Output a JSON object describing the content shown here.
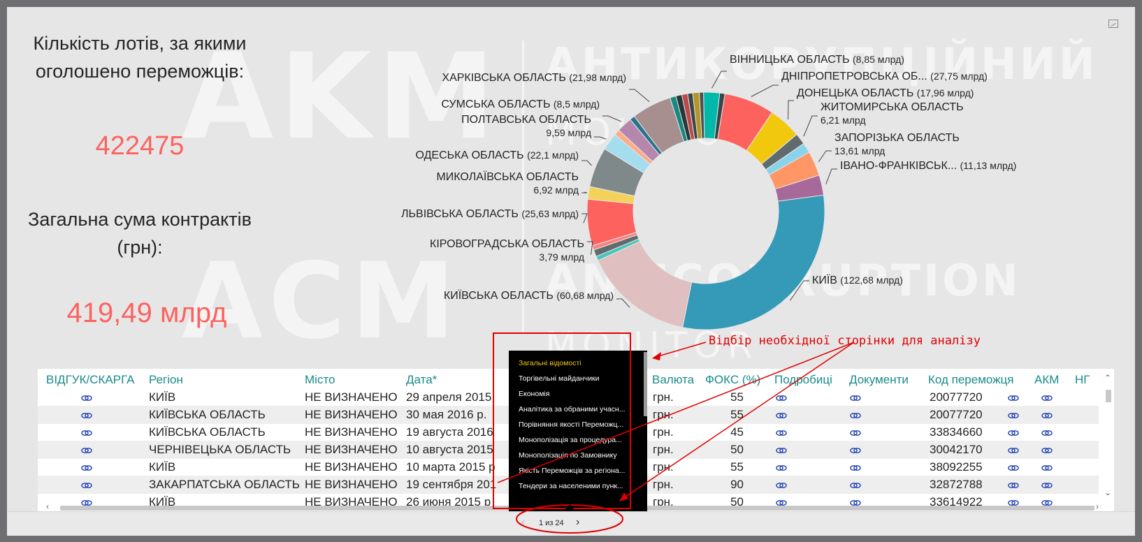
{
  "watermark": {
    "logo_top": "AKM",
    "logo_bottom": "ACM",
    "text1": "АНТИКОРУПЦІЙНИЙ",
    "text2": "МОНІТОР",
    "text3": "ANTICORRUPTION",
    "text4": "MONITOR"
  },
  "kpi": {
    "lots_title_1": "Кількість лотів, за якими",
    "lots_title_2": "оголошено переможців:",
    "lots_value": "422475",
    "sum_title_1": "Загальна сума контрактів",
    "sum_title_2": "(грн):",
    "sum_value": "419,49 млрд"
  },
  "chart_data": {
    "type": "pie",
    "hole": true,
    "unit": "млрд",
    "slices": [
      {
        "label": "ВІННИЦЬКА ОБЛАСТЬ",
        "value": 8.85,
        "text": "ВІННИЦЬКА ОБЛАСТЬ",
        "value_text": "(8,85 млрд)",
        "color": "#01b8aa"
      },
      {
        "label": "(unlabeled)",
        "value": 2.9,
        "color": "#374649"
      },
      {
        "label": "ДНІПРОПЕТРОВСЬКА ОБ...",
        "value": 27.75,
        "text": "ДНІПРОПЕТРОВСЬКА ОБ...",
        "value_text": "(27,75 млрд)",
        "color": "#fd625e"
      },
      {
        "label": "ДОНЕЦЬКА ОБЛАСТЬ",
        "value": 17.96,
        "text": "ДОНЕЦЬКА ОБЛАСТЬ",
        "value_text": "(17,96 млрд)",
        "color": "#f2c80f"
      },
      {
        "label": "ЖИТОМИРСЬКА ОБЛАСТЬ",
        "value": 6.21,
        "text": "ЖИТОМИРСЬКА ОБЛАСТЬ",
        "value_text": "6,21 млрд",
        "color": "#5f6b6d"
      },
      {
        "label": "(unlabeled)",
        "value": 5.6,
        "color": "#8ad4eb"
      },
      {
        "label": "ЗАПОРІЗЬКА ОБЛАСТЬ",
        "value": 13.61,
        "text": "ЗАПОРІЗЬКА ОБЛАСТЬ",
        "value_text": "13,61 млрд",
        "color": "#fe9666"
      },
      {
        "label": "ІВАНО-ФРАНКІВСЬК...",
        "value": 11.13,
        "text": "ІВАНО-ФРАНКІВСЬК...",
        "value_text": "(11,13 млрд)",
        "color": "#a66999"
      },
      {
        "label": "КИЇВ",
        "value": 122.68,
        "text": "КИЇВ",
        "value_text": "(122,68 млрд)",
        "color": "#3599b8"
      },
      {
        "label": "КИЇВСЬКА ОБЛАСТЬ",
        "value": 60.68,
        "text": "КИЇВСЬКА ОБЛАСТЬ",
        "value_text": "(60,68 млрд)",
        "color": "#dfbfbf"
      },
      {
        "label": "(unlabeled)",
        "value": 2.5,
        "color": "#4ac5bb"
      },
      {
        "label": "КІРОВОГРАДСЬКА ОБЛАСТЬ",
        "value": 3.79,
        "text": "КІРОВОГРАДСЬКА ОБЛАСТЬ",
        "value_text": "3,79 млрд",
        "color": "#5f6b6d"
      },
      {
        "label": "(unlabeled)",
        "value": 2.4,
        "color": "#fb8281"
      },
      {
        "label": "ЛЬВІВСЬКА ОБЛАСТЬ",
        "value": 25.63,
        "text": "ЛЬВІВСЬКА ОБЛАСТЬ",
        "value_text": "(25,63 млрд)",
        "color": "#fd625e"
      },
      {
        "label": "МИКОЛАЇВСЬКА ОБЛАСТЬ",
        "value": 6.92,
        "text": "МИКОЛАЇВСЬКА ОБЛАСТЬ",
        "value_text": "6,92 млрд",
        "color": "#f4d25a"
      },
      {
        "label": "ОДЕСЬКА ОБЛАСТЬ",
        "value": 22.1,
        "text": "ОДЕСЬКА ОБЛАСТЬ",
        "value_text": "(22,1 млрд)",
        "color": "#7f898a"
      },
      {
        "label": "ПОЛТАВСЬКА ОБЛАСТЬ",
        "value": 9.59,
        "text": "ПОЛТАВСЬКА ОБЛАСТЬ",
        "value_text": "9,59 млрд",
        "color": "#a4ddee"
      },
      {
        "label": "(unlabeled)",
        "value": 3.2,
        "color": "#fdab89"
      },
      {
        "label": "СУМСЬКА ОБЛАСТЬ",
        "value": 8.5,
        "text": "СУМСЬКА ОБЛАСТЬ",
        "value_text": "(8,5 млрд)",
        "color": "#b687ac"
      },
      {
        "label": "(unlabeled)",
        "value": 2.8,
        "color": "#28738a"
      },
      {
        "label": "ХАРКІВСЬКА ОБЛАСТЬ",
        "value": 21.98,
        "text": "ХАРКІВСЬКА ОБЛАСТЬ",
        "value_text": "(21,98 млрд)",
        "color": "#a78f8f"
      },
      {
        "label": "(unlabeled)",
        "value": 3.3,
        "color": "#168980"
      },
      {
        "label": "(unlabeled)",
        "value": 3.3,
        "color": "#293537"
      },
      {
        "label": "(unlabeled)",
        "value": 3.2,
        "color": "#bb4a4a"
      },
      {
        "label": "(unlabeled)",
        "value": 2.8,
        "color": "#374649"
      },
      {
        "label": "(unlabeled)",
        "value": 3.6,
        "color": "#b59525"
      },
      {
        "label": "(unlabeled)",
        "value": 2.3,
        "color": "#475052"
      }
    ]
  },
  "table": {
    "headers": [
      "ВІДГУК/СКАРГА",
      "Регіон",
      "Місто",
      "Дата*",
      "Валюта",
      "ФОКС (%)",
      "Подробиці",
      "Документи",
      "Код переможця",
      "АКМ",
      "НГ"
    ],
    "rows": [
      {
        "region": "КИЇВ",
        "city": "НЕ ВИЗНАЧЕНО",
        "date": "29 апреля 2015",
        "currency": "грн.",
        "foks": "55",
        "code": "20077720"
      },
      {
        "region": "КИЇВСЬКА ОБЛАСТЬ",
        "city": "НЕ ВИЗНАЧЕНО",
        "date": "30 мая 2016 р.",
        "currency": "грн.",
        "foks": "55",
        "code": "20077720"
      },
      {
        "region": "КИЇВСЬКА ОБЛАСТЬ",
        "city": "НЕ ВИЗНАЧЕНО",
        "date": "19 августа 2016",
        "currency": "грн.",
        "foks": "45",
        "code": "33834660"
      },
      {
        "region": "ЧЕРНІВЕЦЬКА ОБЛАСТЬ",
        "city": "НЕ ВИЗНАЧЕНО",
        "date": "10 августа 2015",
        "currency": "грн.",
        "foks": "50",
        "code": "30042170"
      },
      {
        "region": "КИЇВ",
        "city": "НЕ ВИЗНАЧЕНО",
        "date": "10 марта 2015 р",
        "currency": "грн.",
        "foks": "55",
        "code": "38092255"
      },
      {
        "region": "ЗАКАРПАТСЬКА ОБЛАСТЬ",
        "city": "НЕ ВИЗНАЧЕНО",
        "date": "19 сентября 201",
        "currency": "грн.",
        "foks": "90",
        "code": "32872788"
      },
      {
        "region": "КИЇВ",
        "city": "НЕ ВИЗНАЧЕНО",
        "date": "26 июня 2015 р",
        "currency": "грн.",
        "foks": "50",
        "code": "33614922"
      }
    ]
  },
  "page_menu": {
    "items": [
      "Загальні відомості",
      "Торгівельні майданчики",
      "Економія",
      "Аналітика за обраними учасн...",
      "Порівняння якості Переможц...",
      "Монополізація за процедура...",
      "Монополізація по Замовнику",
      "Якість Переможців за регіона...",
      "Тендери за населеними пунк..."
    ],
    "active_index": 0
  },
  "pager": {
    "text": "1 из 24",
    "prev_icon": "chevron-left-icon",
    "next_icon": "chevron-right-icon"
  },
  "annotation": {
    "text": "Відбір необхідної сторінки для аналізу",
    "color": "#e00000"
  }
}
